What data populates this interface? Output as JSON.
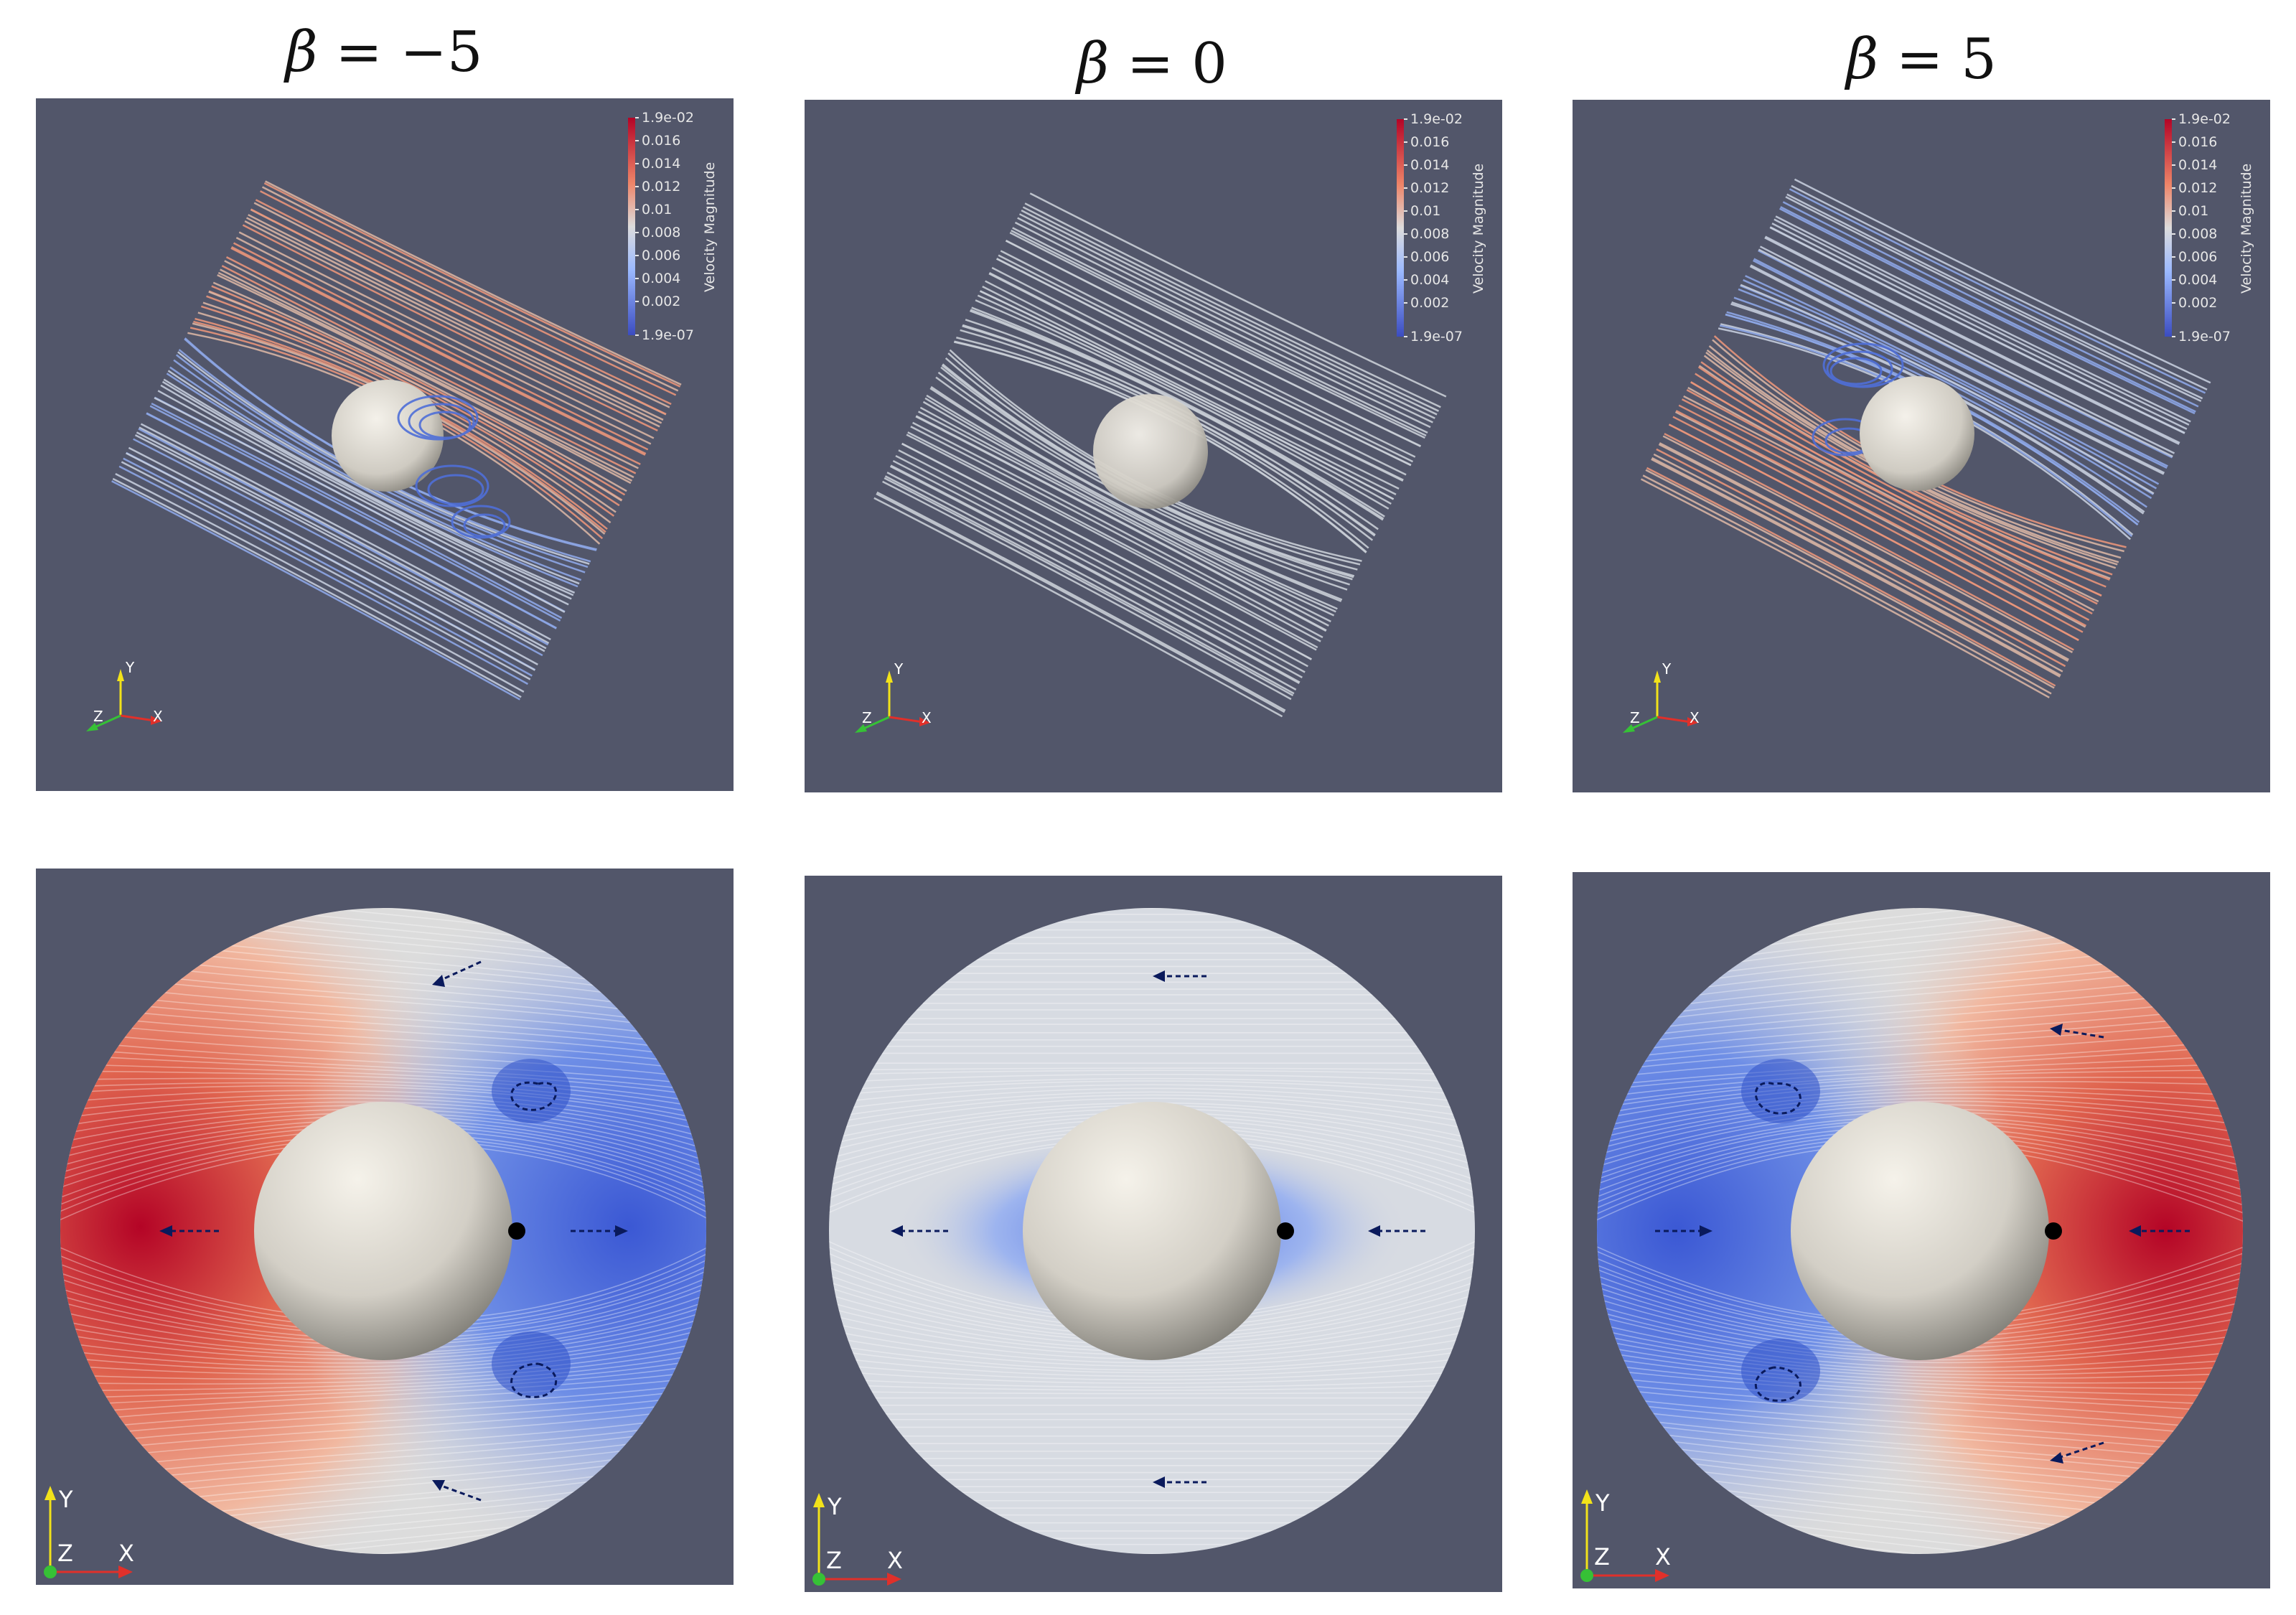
{
  "columns": [
    {
      "title_var": "β",
      "title_rest": "= −5"
    },
    {
      "title_var": "β",
      "title_rest": "= 0"
    },
    {
      "title_var": "β",
      "title_rest": "= 5"
    }
  ],
  "colorbar": {
    "title": "Velocity Magnitude",
    "max_label": "1.9e-02",
    "min_label": "1.9e-07",
    "ticks": [
      "0.016",
      "0.014",
      "0.012",
      "0.01",
      "0.008",
      "0.006",
      "0.004",
      "0.002"
    ],
    "colors": {
      "high": "#b40426",
      "mid": "#dddcdc",
      "low": "#3b4cc0"
    }
  },
  "axes": {
    "x": "X",
    "y": "Y",
    "z": "Z"
  },
  "colors": {
    "background": "#52566a",
    "axis_x": "#e0302a",
    "axis_y": "#f2e21a",
    "axis_z": "#36c136",
    "arrow": "#0a1a5c",
    "sphere": "#e9e4da"
  }
}
